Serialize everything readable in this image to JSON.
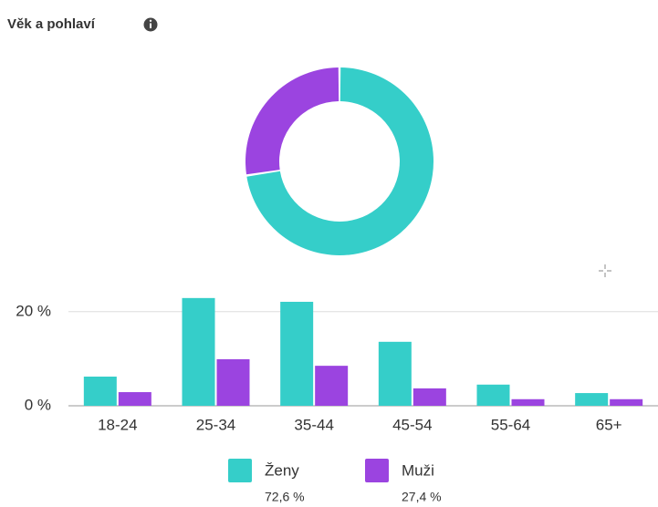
{
  "title": "Věk a pohlaví",
  "chart_data": [
    {
      "type": "pie",
      "values": [
        72.6,
        27.4
      ],
      "value_labels": [
        "72,6 %",
        "27,4 %"
      ],
      "colors": [
        "#35cec9",
        "#9b44e0"
      ]
    },
    {
      "type": "bar",
      "categories": [
        "18-24",
        "25-34",
        "35-44",
        "45-54",
        "55-64",
        "65+"
      ],
      "series": [
        {
          "name": "Ženy",
          "color": "#35cec9",
          "values": [
            6.2,
            22.9,
            22.1,
            13.6,
            4.5,
            2.7
          ]
        },
        {
          "name": "Muži",
          "color": "#9b44e0",
          "values": [
            2.9,
            9.9,
            8.5,
            3.7,
            1.4,
            1.4
          ]
        }
      ],
      "ylim": [
        0,
        25
      ],
      "yticks": [
        {
          "value": 0,
          "label": "0 %"
        },
        {
          "value": 20,
          "label": "20 %"
        }
      ],
      "grid": true
    }
  ]
}
